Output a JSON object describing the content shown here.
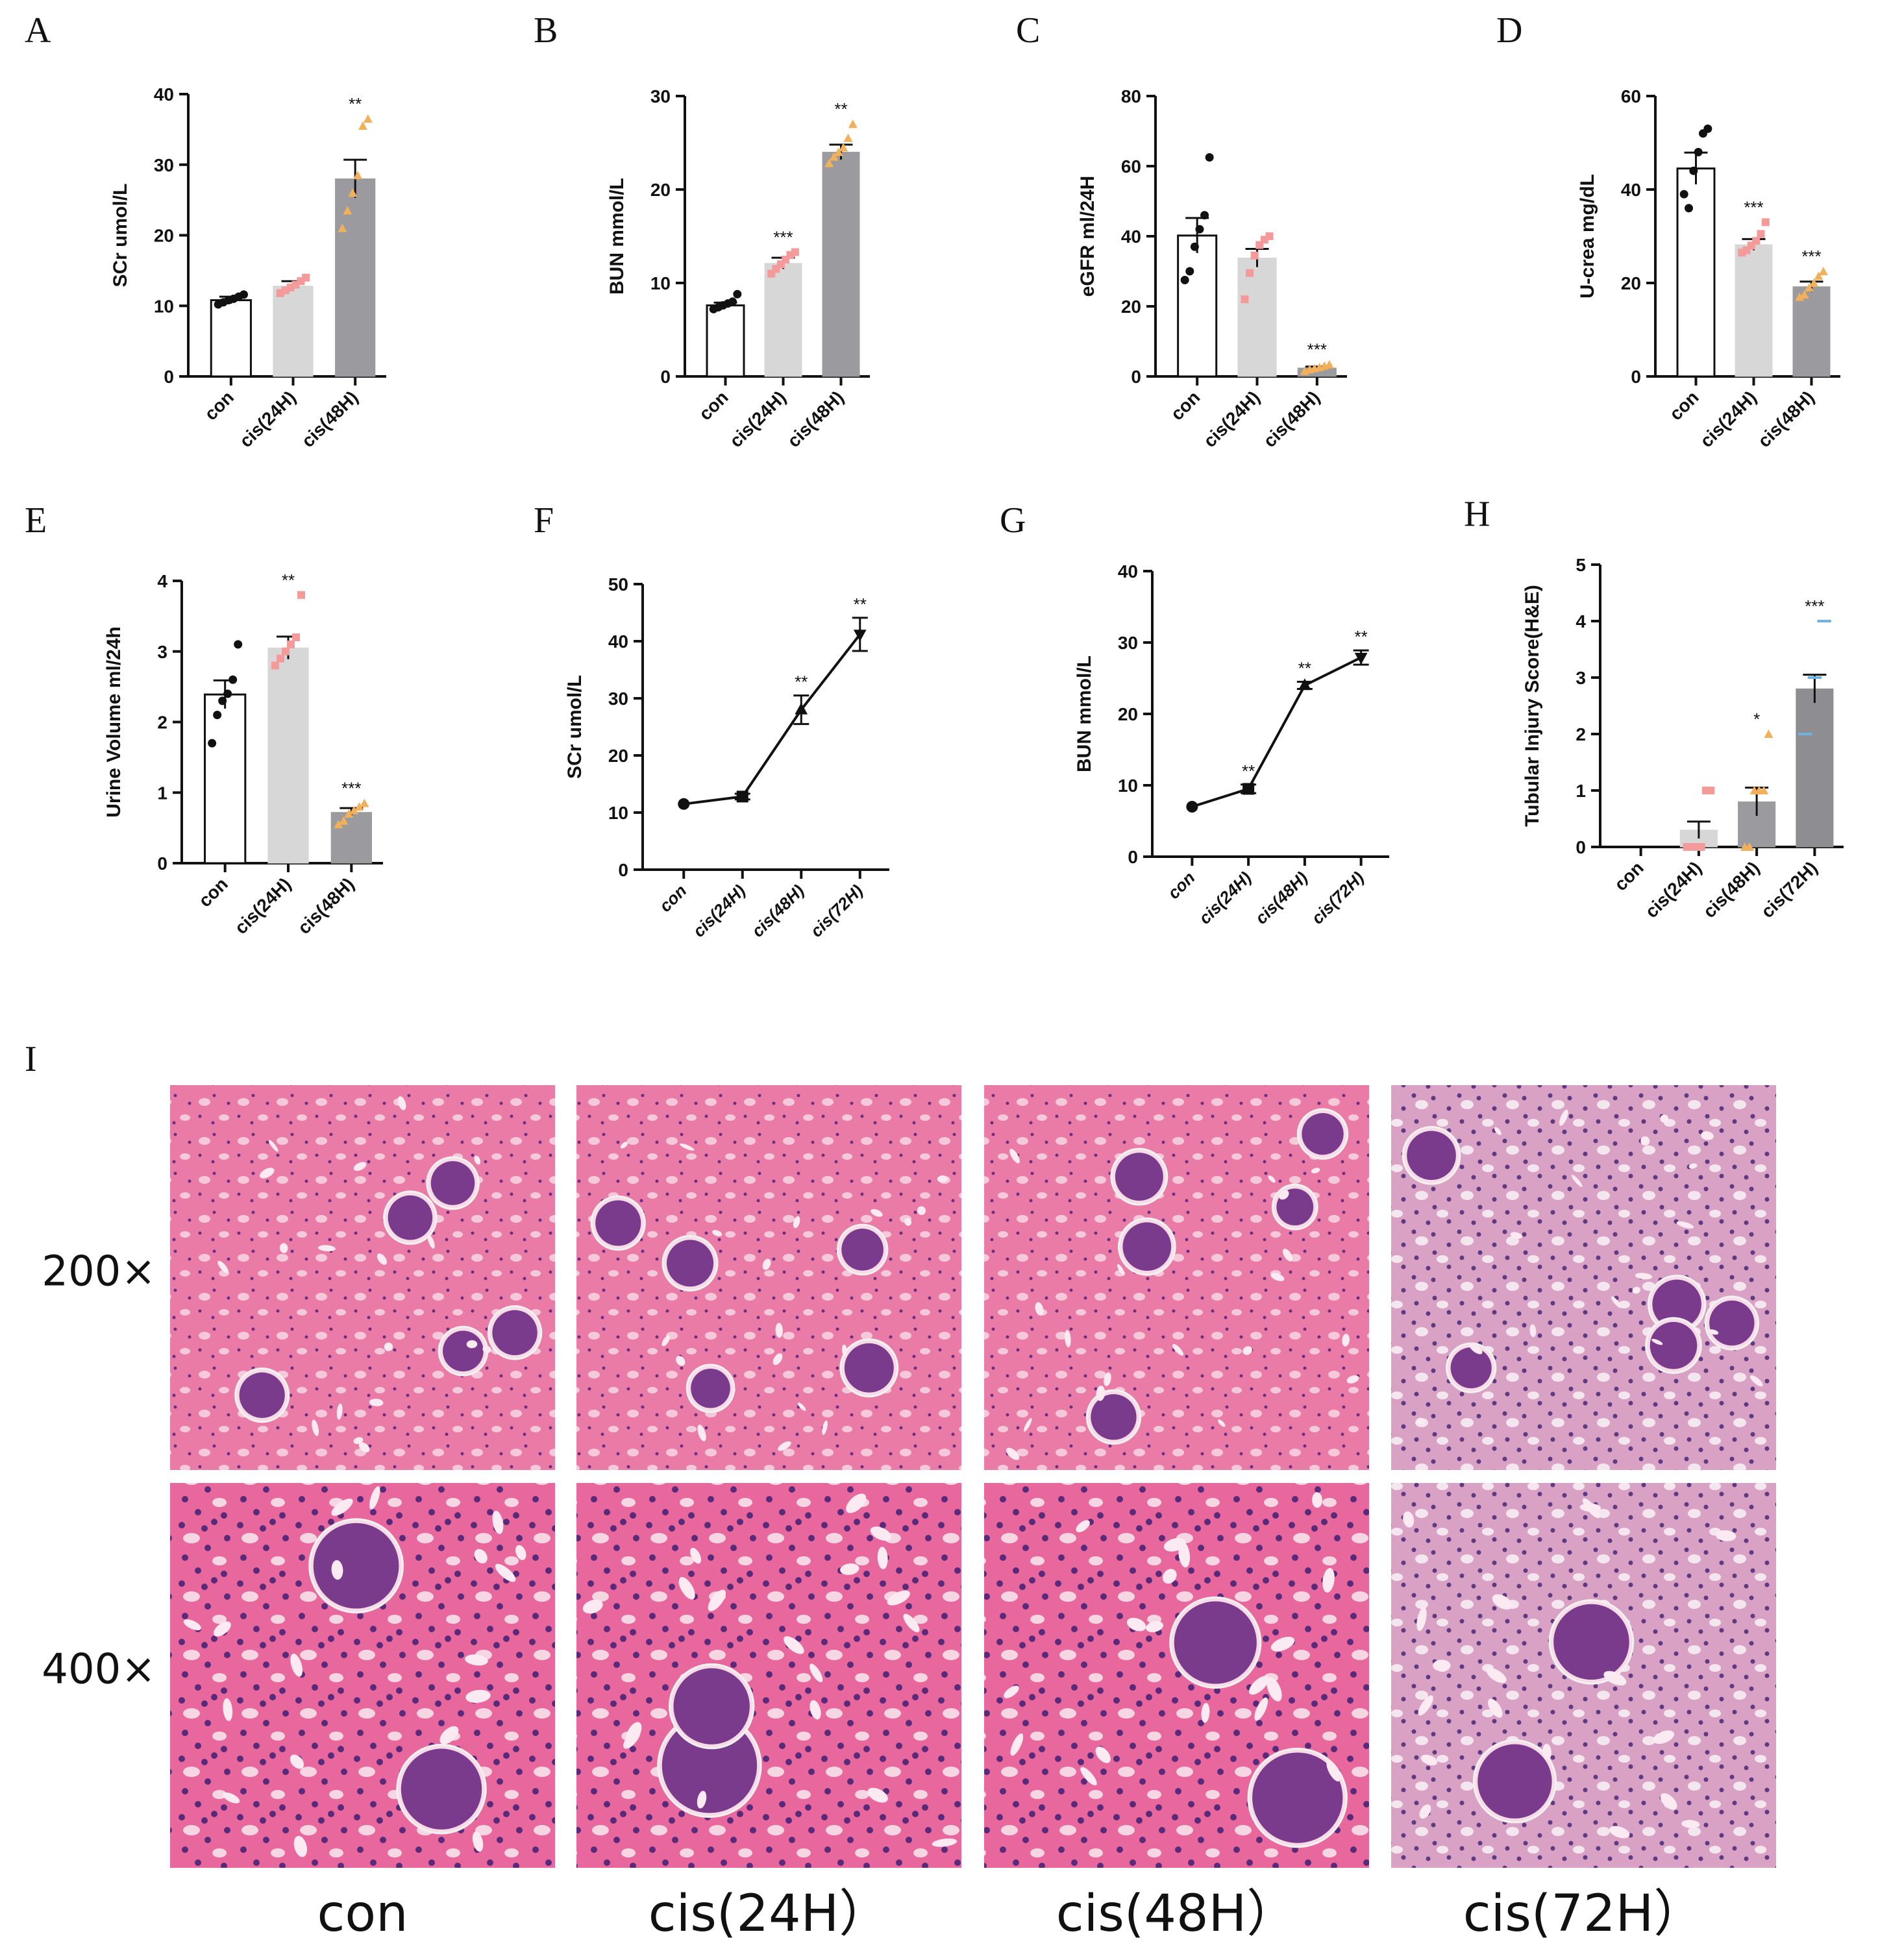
{
  "panel_letters": [
    "A",
    "B",
    "C",
    "D",
    "E",
    "F",
    "G",
    "H",
    "I"
  ],
  "colors": {
    "con": "#ffffff",
    "cis24": "#d7d7d7",
    "cis48": "#9b9b9f",
    "cis72": "#8e8e92",
    "dot_con": "#111111",
    "dot_cis24": "#f49a9a",
    "dot_cis48": "#f2b05a",
    "dot_cis72": "#6fb3e0",
    "tissue_pink": "#e7659a",
    "tissue_purple": "#5b2d7c"
  },
  "chart_data": [
    {
      "id": "A",
      "type": "bar",
      "ylabel": "SCr  umol/L",
      "categories": [
        "con",
        "cis(24H)",
        "cis(48H)"
      ],
      "values": [
        10.8,
        12.8,
        28.0
      ],
      "errors": [
        0.5,
        0.7,
        2.7
      ],
      "points": [
        [
          10.2,
          10.5,
          10.8,
          11.0,
          11.3,
          11.6
        ],
        [
          11.8,
          12.2,
          12.6,
          13.0,
          13.5,
          14.0
        ],
        [
          21.0,
          23.5,
          26.0,
          28.5,
          35.5,
          36.5
        ]
      ],
      "significance": [
        "",
        "",
        "**"
      ],
      "ylim": [
        0,
        40
      ],
      "yticks": [
        0,
        10,
        20,
        30,
        40
      ]
    },
    {
      "id": "B",
      "type": "bar",
      "ylabel": "BUN  mmol/L",
      "categories": [
        "con",
        "cis(24H)",
        "cis(48H)"
      ],
      "values": [
        7.6,
        12.1,
        24.0
      ],
      "errors": [
        0.3,
        0.6,
        0.8
      ],
      "points": [
        [
          7.2,
          7.4,
          7.6,
          7.8,
          8.0,
          8.8
        ],
        [
          11.0,
          11.5,
          12.0,
          12.5,
          13.0,
          13.3
        ],
        [
          22.8,
          23.5,
          24.0,
          24.5,
          25.5,
          27.0
        ]
      ],
      "significance": [
        "",
        "***",
        "**"
      ],
      "ylim": [
        0,
        30
      ],
      "yticks": [
        0,
        10,
        20,
        30
      ]
    },
    {
      "id": "C",
      "type": "bar",
      "ylabel": "eGFR ml/24H",
      "categories": [
        "con",
        "cis(24H)",
        "cis(48H)"
      ],
      "values": [
        40.2,
        33.8,
        2.4
      ],
      "errors": [
        5.0,
        2.6,
        0.4
      ],
      "points": [
        [
          27.5,
          30.0,
          37.0,
          42.0,
          46.0,
          62.5
        ],
        [
          22.0,
          29.5,
          34.5,
          37.5,
          39.0,
          40.0
        ],
        [
          1.5,
          2.0,
          2.3,
          2.6,
          3.0,
          3.4
        ]
      ],
      "significance": [
        "",
        "",
        "***"
      ],
      "ylim": [
        0,
        80
      ],
      "yticks": [
        0,
        20,
        40,
        60,
        80
      ]
    },
    {
      "id": "D",
      "type": "bar",
      "ylabel": "U-crea  mg/dL",
      "categories": [
        "con",
        "cis(24H)",
        "cis(48H)"
      ],
      "values": [
        44.5,
        28.2,
        19.2
      ],
      "errors": [
        3.4,
        1.2,
        1.1
      ],
      "points": [
        [
          39.0,
          36.0,
          44.0,
          48.0,
          52.0,
          53.0
        ],
        [
          26.5,
          27.0,
          28.0,
          29.0,
          30.5,
          33.0
        ],
        [
          17.0,
          17.5,
          19.0,
          20.0,
          21.5,
          22.5
        ]
      ],
      "significance": [
        "",
        "***",
        "***"
      ],
      "ylim": [
        0,
        60
      ],
      "yticks": [
        0,
        20,
        40,
        60
      ]
    },
    {
      "id": "E",
      "type": "bar",
      "ylabel": "Urine Volume ml/24h",
      "categories": [
        "con",
        "cis(24H)",
        "cis(48H)"
      ],
      "values": [
        2.39,
        3.05,
        0.72
      ],
      "errors": [
        0.2,
        0.16,
        0.06
      ],
      "points": [
        [
          1.7,
          2.1,
          2.3,
          2.4,
          2.6,
          3.1
        ],
        [
          2.8,
          2.9,
          3.0,
          3.1,
          3.2,
          3.8
        ],
        [
          0.55,
          0.6,
          0.7,
          0.75,
          0.8,
          0.85
        ]
      ],
      "significance": [
        "",
        "**",
        "***"
      ],
      "ylim": [
        0,
        4
      ],
      "yticks": [
        0,
        1,
        2,
        3,
        4
      ]
    },
    {
      "id": "F",
      "type": "line",
      "ylabel": "SCr  umol/L",
      "categories": [
        "con",
        "cis(24H)",
        "cis(48H)",
        "cis(72H)"
      ],
      "values": [
        11.5,
        12.8,
        28.0,
        41.2
      ],
      "errors": [
        0.4,
        0.5,
        2.5,
        2.9
      ],
      "markers": [
        "circle",
        "square",
        "triangle-up",
        "triangle-down"
      ],
      "significance": [
        "",
        "",
        "**",
        "**"
      ],
      "ylim": [
        0,
        50
      ],
      "yticks": [
        0,
        10,
        20,
        30,
        40,
        50
      ]
    },
    {
      "id": "G",
      "type": "line",
      "ylabel": "BUN  mmol/L",
      "categories": [
        "con",
        "cis(24H)",
        "cis(48H)",
        "cis(72H)"
      ],
      "values": [
        7.0,
        9.5,
        24.0,
        27.9
      ],
      "errors": [
        0.3,
        0.6,
        0.5,
        1.0
      ],
      "markers": [
        "circle",
        "square",
        "triangle-up",
        "triangle-down"
      ],
      "significance": [
        "",
        "**",
        "**",
        "**"
      ],
      "ylim": [
        0,
        40
      ],
      "yticks": [
        0,
        10,
        20,
        30,
        40
      ]
    },
    {
      "id": "H",
      "type": "bar",
      "ylabel": "Tubular Injury Score(H&E)",
      "categories": [
        "con",
        "cis(24H)",
        "cis(48H)",
        "cis(72H)"
      ],
      "values": [
        0,
        0.3,
        0.8,
        2.8
      ],
      "errors": [
        0,
        0.15,
        0.25,
        0.25
      ],
      "points": [
        [],
        [
          0,
          0,
          0,
          0,
          1,
          1
        ],
        [
          0,
          0,
          1,
          1,
          1,
          2
        ],
        [
          2,
          2,
          3,
          3,
          4,
          4
        ]
      ],
      "significance": [
        "",
        "",
        "*",
        "***"
      ],
      "ylim": [
        0,
        5
      ],
      "yticks": [
        0,
        1,
        2,
        3,
        4,
        5
      ]
    }
  ],
  "micrographs": {
    "rows": [
      "200×",
      "400×"
    ],
    "columns": [
      "con",
      "cis(24H）",
      "cis(48H）",
      "cis(72H）"
    ]
  }
}
